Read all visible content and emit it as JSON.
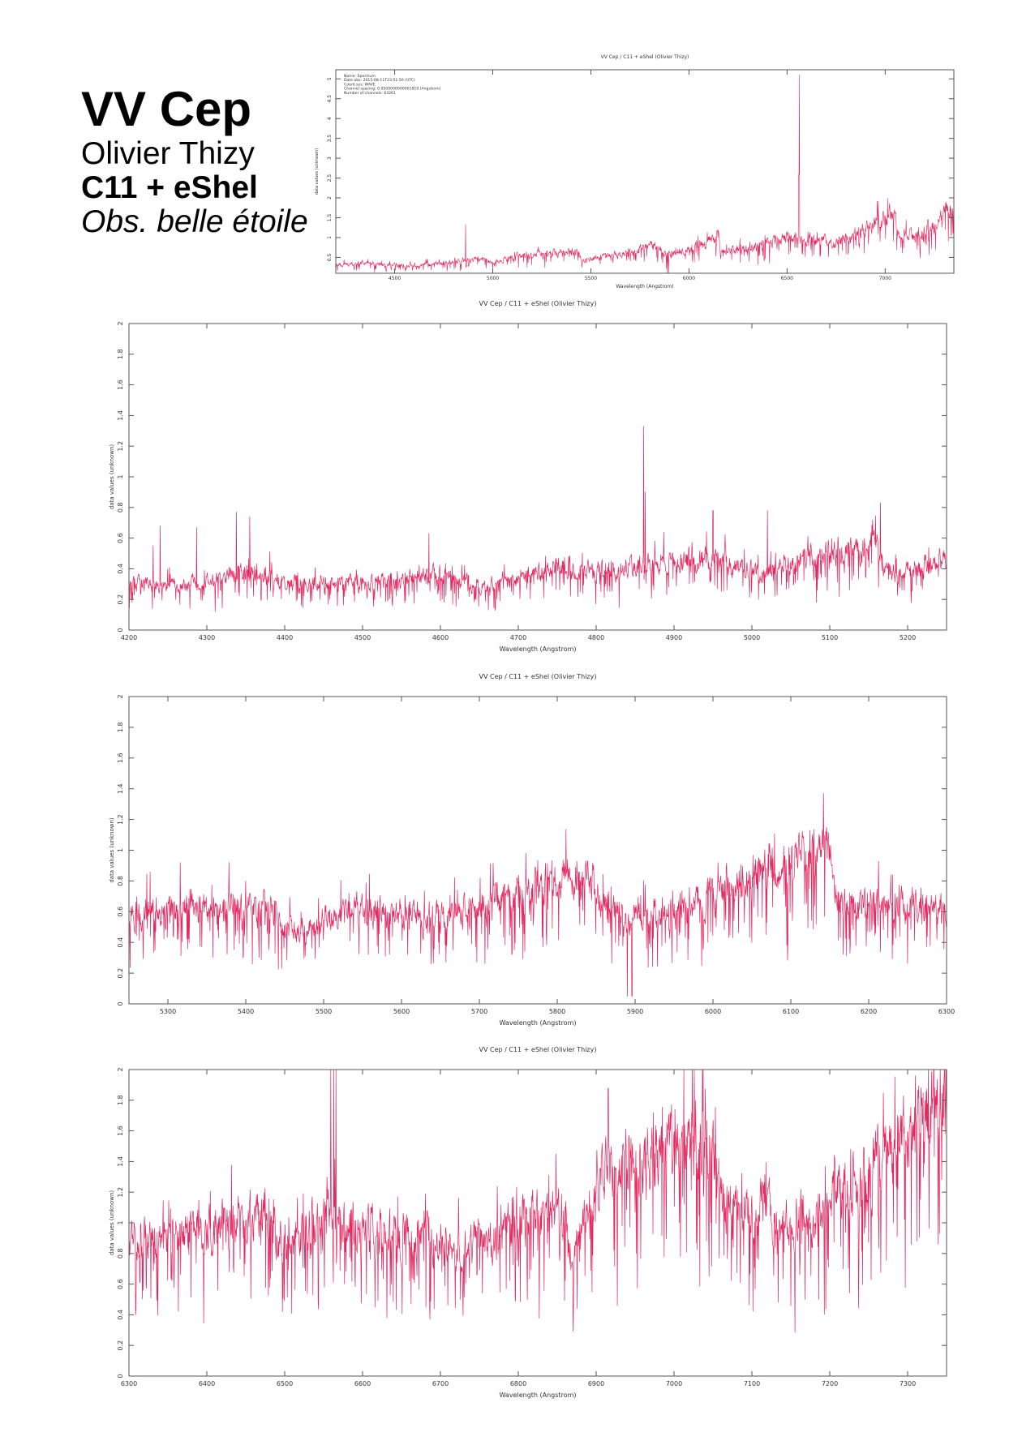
{
  "header": {
    "star": "VV Cep",
    "observer": "Olivier Thizy",
    "instrument": "C11 + eShel",
    "site": "Obs. belle étoile"
  },
  "colors": {
    "spectrum": "#e0104e",
    "axis": "#555555"
  },
  "chart_data": [
    {
      "id": "overview",
      "type": "line",
      "title": "VV Cep / C11 + eShel (Olivier Thizy)",
      "xlabel": "Wavelength (Angstrom)",
      "ylabel": "data values (unknown)",
      "xlim": [
        4200,
        7350
      ],
      "ylim": [
        0.1,
        5.23
      ],
      "xticks": [
        4500,
        5000,
        5500,
        6000,
        6500,
        7000
      ],
      "yticks": [
        0.5,
        1,
        1.5,
        2,
        2.5,
        3,
        3.5,
        4,
        4.5,
        5
      ],
      "info": [
        "Name: Spectrum",
        "Date obs: 2015-08-11T23:51:50 (UTC)",
        "Coord sys: WAVE",
        "Channel spacing: 0.0500000000001819 (Angstrom)",
        "Number of channels: 63261"
      ],
      "continuum": [
        [
          4200,
          0.3
        ],
        [
          4350,
          0.36
        ],
        [
          4500,
          0.3
        ],
        [
          4650,
          0.3
        ],
        [
          4800,
          0.4
        ],
        [
          4950,
          0.46
        ],
        [
          5000,
          0.38
        ],
        [
          5160,
          0.55
        ],
        [
          5250,
          0.6
        ],
        [
          5440,
          0.6
        ],
        [
          5450,
          0.45
        ],
        [
          5650,
          0.55
        ],
        [
          5800,
          0.8
        ],
        [
          5850,
          0.75
        ],
        [
          5890,
          0.55
        ],
        [
          6000,
          0.7
        ],
        [
          6150,
          1.0
        ],
        [
          6160,
          0.65
        ],
        [
          6300,
          0.7
        ],
        [
          6500,
          1.0
        ],
        [
          6550,
          0.95
        ],
        [
          6700,
          0.9
        ],
        [
          6720,
          0.8
        ],
        [
          6860,
          1.1
        ],
        [
          7050,
          1.6
        ],
        [
          7060,
          1.1
        ],
        [
          7150,
          1.0
        ],
        [
          7250,
          1.3
        ],
        [
          7350,
          1.8
        ]
      ],
      "features": [
        [
          4861,
          1.33
        ],
        [
          6563,
          5.1
        ],
        [
          6560,
          2.6
        ],
        [
          5890,
          0.05
        ],
        [
          5896,
          0.05
        ]
      ]
    },
    {
      "id": "blue",
      "type": "line",
      "title": "VV Cep / C11 + eShel (Olivier Thizy)",
      "xlabel": "Wavelength (Angstrom)",
      "ylabel": "data values (unknown)",
      "xlim": [
        4200,
        5250
      ],
      "ylim": [
        0,
        2
      ],
      "xticks": [
        4200,
        4300,
        4400,
        4500,
        4600,
        4700,
        4800,
        4900,
        5000,
        5100,
        5200
      ],
      "yticks": [
        0,
        0.2,
        0.4,
        0.6,
        0.8,
        1,
        1.2,
        1.4,
        1.6,
        1.8,
        2
      ],
      "continuum": [
        [
          4200,
          0.3
        ],
        [
          4300,
          0.3
        ],
        [
          4350,
          0.38
        ],
        [
          4400,
          0.3
        ],
        [
          4500,
          0.3
        ],
        [
          4600,
          0.36
        ],
        [
          4650,
          0.28
        ],
        [
          4700,
          0.33
        ],
        [
          4750,
          0.42
        ],
        [
          4800,
          0.38
        ],
        [
          4860,
          0.42
        ],
        [
          4950,
          0.48
        ],
        [
          5000,
          0.38
        ],
        [
          5100,
          0.5
        ],
        [
          5160,
          0.55
        ],
        [
          5170,
          0.36
        ],
        [
          5250,
          0.45
        ]
      ],
      "features": [
        [
          4231,
          0.55
        ],
        [
          4240,
          0.68
        ],
        [
          4287,
          0.67
        ],
        [
          4338,
          0.77
        ],
        [
          4355,
          0.74
        ],
        [
          4585,
          0.63
        ],
        [
          4861,
          1.33
        ],
        [
          4863,
          0.9
        ],
        [
          4950,
          0.78
        ],
        [
          5020,
          0.78
        ],
        [
          5165,
          0.83
        ]
      ]
    },
    {
      "id": "green",
      "type": "line",
      "title": "VV Cep / C11 + eShel (Olivier Thizy)",
      "xlabel": "Wavelength (Angstrom)",
      "ylabel": "data values (unknown)",
      "xlim": [
        5250,
        6300
      ],
      "ylim": [
        0,
        2
      ],
      "xticks": [
        5300,
        5400,
        5500,
        5600,
        5700,
        5800,
        5900,
        6000,
        6100,
        6200,
        6300
      ],
      "yticks": [
        0,
        0.2,
        0.4,
        0.6,
        0.8,
        1,
        1.2,
        1.4,
        1.6,
        1.8,
        2
      ],
      "continuum": [
        [
          5250,
          0.6
        ],
        [
          5440,
          0.62
        ],
        [
          5450,
          0.47
        ],
        [
          5550,
          0.6
        ],
        [
          5650,
          0.56
        ],
        [
          5750,
          0.7
        ],
        [
          5800,
          0.82
        ],
        [
          5840,
          0.8
        ],
        [
          5870,
          0.62
        ],
        [
          5890,
          0.56
        ],
        [
          5950,
          0.6
        ],
        [
          6000,
          0.7
        ],
        [
          6080,
          0.9
        ],
        [
          6150,
          1.0
        ],
        [
          6160,
          0.66
        ],
        [
          6300,
          0.62
        ]
      ],
      "features": [
        [
          5316,
          0.92
        ],
        [
          5890,
          0.05
        ],
        [
          5896,
          0.05
        ],
        [
          6146,
          1.15
        ]
      ]
    },
    {
      "id": "red",
      "type": "line",
      "title": "VV Cep / C11 + eShel (Olivier Thizy)",
      "xlabel": "Wavelength (Angstrom)",
      "ylabel": "data values (unknown)",
      "xlim": [
        6300,
        7350
      ],
      "ylim": [
        0,
        2
      ],
      "xticks": [
        6300,
        6400,
        6500,
        6600,
        6700,
        6800,
        6900,
        7000,
        7100,
        7200,
        7300
      ],
      "yticks": [
        0,
        0.2,
        0.4,
        0.6,
        0.8,
        1,
        1.2,
        1.4,
        1.6,
        1.8,
        2
      ],
      "continuum": [
        [
          6300,
          0.85
        ],
        [
          6400,
          0.97
        ],
        [
          6480,
          1.05
        ],
        [
          6500,
          0.85
        ],
        [
          6540,
          0.98
        ],
        [
          6555,
          1.1
        ],
        [
          6570,
          1.0
        ],
        [
          6580,
          0.95
        ],
        [
          6700,
          0.9
        ],
        [
          6720,
          0.8
        ],
        [
          6800,
          1.0
        ],
        [
          6860,
          1.1
        ],
        [
          6870,
          0.72
        ],
        [
          6900,
          1.3
        ],
        [
          7000,
          1.5
        ],
        [
          7050,
          1.62
        ],
        [
          7060,
          1.12
        ],
        [
          7100,
          1.1
        ],
        [
          7150,
          0.98
        ],
        [
          7250,
          1.3
        ],
        [
          7340,
          1.8
        ],
        [
          7350,
          1.9
        ]
      ],
      "features": [
        [
          6559,
          2.0
        ],
        [
          6563,
          2.0
        ],
        [
          6566,
          2.0
        ],
        [
          6497,
          0.42
        ],
        [
          7186,
          0.5
        ]
      ]
    }
  ]
}
